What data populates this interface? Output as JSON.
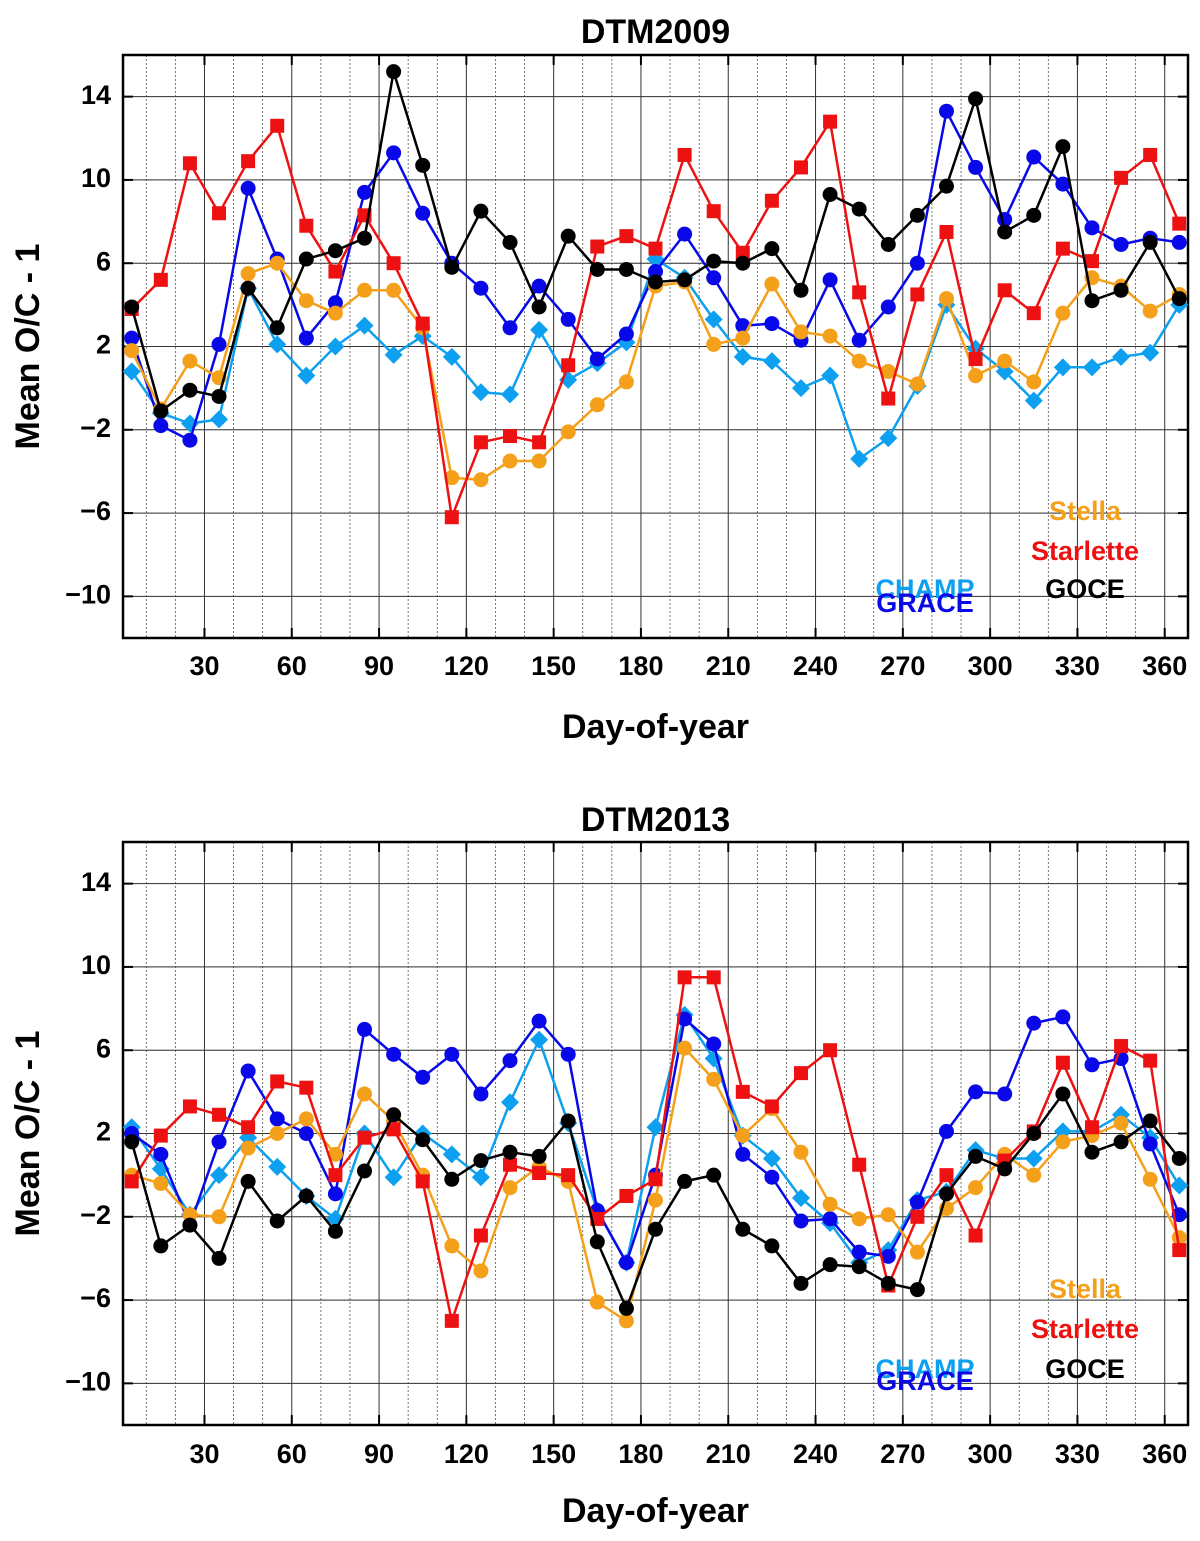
{
  "chart_data": [
    {
      "type": "line",
      "title": "DTM2009",
      "xlabel": "Day-of-year",
      "ylabel": "Mean O/C - 1",
      "xlim": [
        2,
        368
      ],
      "ylim": [
        -12,
        16
      ],
      "xticks": [
        30,
        60,
        90,
        120,
        150,
        180,
        210,
        240,
        270,
        300,
        330,
        360
      ],
      "xtick_labels": [
        "30",
        "60",
        "90",
        "120",
        "150",
        "180",
        "210",
        "240",
        "270",
        "300",
        "330",
        "360"
      ],
      "yticks": [
        -10,
        -6,
        -2,
        2,
        6,
        10,
        14
      ],
      "ytick_labels": [
        "−10",
        "−6",
        "−2",
        "2",
        "6",
        "10",
        "14"
      ],
      "grid": true,
      "x": [
        5,
        15,
        25,
        35,
        45,
        55,
        65,
        75,
        85,
        95,
        105,
        115,
        125,
        135,
        145,
        155,
        165,
        175,
        185,
        195,
        205,
        215,
        225,
        235,
        245,
        255,
        265,
        275,
        285,
        295,
        305,
        315,
        325,
        335,
        345,
        355,
        365
      ],
      "series": [
        {
          "name": "CHAMP",
          "color": "#0ea0f0",
          "marker": "diamond",
          "values": [
            0.8,
            -1.2,
            -1.7,
            -1.5,
            4.8,
            2.1,
            0.6,
            2.0,
            3.0,
            1.6,
            2.5,
            1.5,
            -0.2,
            -0.3,
            2.8,
            0.4,
            1.2,
            2.2,
            6.2,
            5.3,
            3.3,
            1.5,
            1.3,
            0.0,
            0.6,
            -3.4,
            -2.4,
            0.1,
            4.0,
            1.9,
            0.8,
            -0.6,
            1.0,
            1.0,
            1.5,
            1.7,
            4.0
          ]
        },
        {
          "name": "GRACE",
          "color": "#0808e8",
          "marker": "circle",
          "values": [
            2.4,
            -1.8,
            -2.5,
            2.1,
            9.6,
            6.2,
            2.4,
            4.1,
            9.4,
            11.3,
            8.4,
            6.0,
            4.8,
            2.9,
            4.9,
            3.3,
            1.4,
            2.6,
            5.6,
            7.4,
            5.3,
            3.0,
            3.1,
            2.3,
            5.2,
            2.3,
            3.9,
            6.0,
            13.3,
            10.6,
            8.1,
            11.1,
            9.8,
            7.7,
            6.9,
            7.2,
            7.0
          ]
        },
        {
          "name": "Stella",
          "color": "#f5a01a",
          "marker": "circle",
          "values": [
            1.8,
            -1.0,
            1.3,
            0.5,
            5.5,
            6.0,
            4.2,
            3.6,
            4.7,
            4.7,
            2.9,
            -4.3,
            -4.4,
            -3.5,
            -3.5,
            -2.1,
            -0.8,
            0.3,
            4.9,
            5.1,
            2.1,
            2.4,
            5.0,
            2.7,
            2.5,
            1.3,
            0.8,
            0.2,
            4.3,
            0.6,
            1.3,
            0.3,
            3.6,
            5.3,
            4.9,
            3.7,
            4.5
          ]
        },
        {
          "name": "Starlette",
          "color": "#ee1111",
          "marker": "square",
          "values": [
            3.8,
            5.2,
            10.8,
            8.4,
            10.9,
            12.6,
            7.8,
            5.6,
            8.3,
            6.0,
            3.1,
            -6.2,
            -2.6,
            -2.3,
            -2.6,
            1.1,
            6.8,
            7.3,
            6.7,
            11.2,
            8.5,
            6.5,
            9.0,
            10.6,
            12.8,
            4.6,
            -0.5,
            4.5,
            7.5,
            1.4,
            4.7,
            3.6,
            6.7,
            6.1,
            10.1,
            11.2,
            7.9
          ]
        },
        {
          "name": "GOCE",
          "color": "#000000",
          "marker": "circle",
          "values": [
            3.9,
            -1.1,
            -0.1,
            -0.4,
            4.8,
            2.9,
            6.2,
            6.6,
            7.2,
            15.2,
            10.7,
            5.8,
            8.5,
            7.0,
            3.9,
            7.3,
            5.7,
            5.7,
            5.1,
            5.2,
            6.1,
            6.0,
            6.7,
            4.7,
            9.3,
            8.6,
            6.9,
            8.3,
            9.7,
            13.9,
            7.5,
            8.3,
            11.6,
            4.2,
            4.7,
            7.0,
            4.3
          ]
        }
      ]
    },
    {
      "type": "line",
      "title": "DTM2013",
      "xlabel": "Day-of-year",
      "ylabel": "Mean O/C - 1",
      "xlim": [
        2,
        368
      ],
      "ylim": [
        -12,
        16
      ],
      "xticks": [
        30,
        60,
        90,
        120,
        150,
        180,
        210,
        240,
        270,
        300,
        330,
        360
      ],
      "xtick_labels": [
        "30",
        "60",
        "90",
        "120",
        "150",
        "180",
        "210",
        "240",
        "270",
        "300",
        "330",
        "360"
      ],
      "yticks": [
        -10,
        -6,
        -2,
        2,
        6,
        10,
        14
      ],
      "ytick_labels": [
        "−10",
        "−6",
        "−2",
        "2",
        "6",
        "10",
        "14"
      ],
      "grid": true,
      "x": [
        5,
        15,
        25,
        35,
        45,
        55,
        65,
        75,
        85,
        95,
        105,
        115,
        125,
        135,
        145,
        155,
        165,
        175,
        185,
        195,
        205,
        215,
        225,
        235,
        245,
        255,
        265,
        275,
        285,
        295,
        305,
        315,
        325,
        335,
        345,
        355,
        365
      ],
      "series": [
        {
          "name": "CHAMP",
          "color": "#0ea0f0",
          "marker": "diamond",
          "values": [
            2.3,
            0.3,
            -1.9,
            0.0,
            1.8,
            0.4,
            -1.0,
            -2.1,
            2.0,
            -0.1,
            2.0,
            1.0,
            -0.1,
            3.5,
            6.5,
            2.5,
            -1.7,
            -4.2,
            2.3,
            7.7,
            5.6,
            1.9,
            0.8,
            -1.1,
            -2.3,
            -4.2,
            -3.6,
            -1.2,
            -0.8,
            1.2,
            0.8,
            0.8,
            2.1,
            2.1,
            2.9,
            1.8,
            -0.5
          ]
        },
        {
          "name": "GRACE",
          "color": "#0808e8",
          "marker": "circle",
          "values": [
            2.0,
            1.0,
            -2.4,
            1.6,
            5.0,
            2.7,
            2.0,
            -0.9,
            7.0,
            5.8,
            4.7,
            5.8,
            3.9,
            5.5,
            7.4,
            5.8,
            -1.7,
            -4.2,
            0.0,
            7.5,
            6.3,
            1.0,
            -0.1,
            -2.2,
            -2.1,
            -3.7,
            -3.9,
            -1.3,
            2.1,
            4.0,
            3.9,
            7.3,
            7.6,
            5.3,
            5.6,
            1.5,
            -1.9
          ]
        },
        {
          "name": "Stella",
          "color": "#f5a01a",
          "marker": "circle",
          "values": [
            0.0,
            -0.4,
            -1.9,
            -2.0,
            1.3,
            2.0,
            2.7,
            1.0,
            3.9,
            2.6,
            0.0,
            -3.4,
            -4.6,
            -0.6,
            0.4,
            -0.3,
            -6.1,
            -7.0,
            -1.2,
            6.1,
            4.6,
            1.9,
            3.2,
            1.1,
            -1.4,
            -2.1,
            -1.9,
            -3.7,
            -1.6,
            -0.6,
            1.0,
            0.0,
            1.6,
            1.9,
            2.5,
            -0.2,
            -3.0
          ]
        },
        {
          "name": "Starlette",
          "color": "#ee1111",
          "marker": "square",
          "values": [
            -0.3,
            1.9,
            3.3,
            2.9,
            2.3,
            4.5,
            4.2,
            0.0,
            1.8,
            2.2,
            -0.3,
            -7.0,
            -2.9,
            0.5,
            0.1,
            0.0,
            -2.1,
            -1.0,
            -0.2,
            9.5,
            9.5,
            4.0,
            3.3,
            4.9,
            6.0,
            0.5,
            -5.3,
            -2.0,
            0.0,
            -2.9,
            0.7,
            2.1,
            5.4,
            2.3,
            6.2,
            5.5,
            -3.6
          ]
        },
        {
          "name": "GOCE",
          "color": "#000000",
          "marker": "circle",
          "values": [
            1.6,
            -3.4,
            -2.4,
            -4.0,
            -0.3,
            -2.2,
            -1.0,
            -2.7,
            0.2,
            2.9,
            1.7,
            -0.2,
            0.7,
            1.1,
            0.9,
            2.6,
            -3.2,
            -6.4,
            -2.6,
            -0.3,
            0.0,
            -2.6,
            -3.4,
            -5.2,
            -4.3,
            -4.4,
            -5.2,
            -5.5,
            -0.9,
            0.9,
            0.3,
            2.0,
            3.9,
            1.1,
            1.6,
            2.6,
            0.8
          ]
        }
      ]
    }
  ]
}
